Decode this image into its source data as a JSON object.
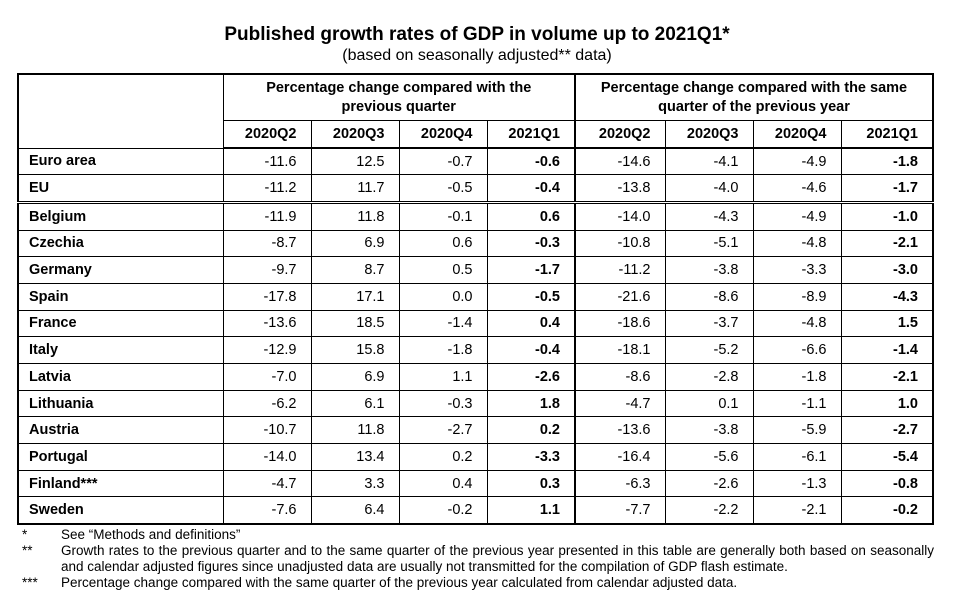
{
  "title": "Published growth rates of GDP in volume up to 2021Q1*",
  "subtitle": "(based on seasonally adjusted** data)",
  "table": {
    "group_headers": [
      "Percentage change compared with the previous quarter",
      "Percentage change compared with the same quarter of the previous year"
    ],
    "quarters": [
      "2020Q2",
      "2020Q3",
      "2020Q4",
      "2021Q1",
      "2020Q2",
      "2020Q3",
      "2020Q4",
      "2021Q1"
    ],
    "rows": [
      {
        "label": "Euro area",
        "values": [
          "-11.6",
          "12.5",
          "-0.7",
          "-0.6",
          "-14.6",
          "-4.1",
          "-4.9",
          "-1.8"
        ]
      },
      {
        "label": "EU",
        "values": [
          "-11.2",
          "11.7",
          "-0.5",
          "-0.4",
          "-13.8",
          "-4.0",
          "-4.6",
          "-1.7"
        ]
      },
      {
        "label": "Belgium",
        "values": [
          "-11.9",
          "11.8",
          "-0.1",
          "0.6",
          "-14.0",
          "-4.3",
          "-4.9",
          "-1.0"
        ]
      },
      {
        "label": "Czechia",
        "values": [
          "-8.7",
          "6.9",
          "0.6",
          "-0.3",
          "-10.8",
          "-5.1",
          "-4.8",
          "-2.1"
        ]
      },
      {
        "label": "Germany",
        "values": [
          "-9.7",
          "8.7",
          "0.5",
          "-1.7",
          "-11.2",
          "-3.8",
          "-3.3",
          "-3.0"
        ]
      },
      {
        "label": "Spain",
        "values": [
          "-17.8",
          "17.1",
          "0.0",
          "-0.5",
          "-21.6",
          "-8.6",
          "-8.9",
          "-4.3"
        ]
      },
      {
        "label": "France",
        "values": [
          "-13.6",
          "18.5",
          "-1.4",
          "0.4",
          "-18.6",
          "-3.7",
          "-4.8",
          "1.5"
        ]
      },
      {
        "label": "Italy",
        "values": [
          "-12.9",
          "15.8",
          "-1.8",
          "-0.4",
          "-18.1",
          "-5.2",
          "-6.6",
          "-1.4"
        ]
      },
      {
        "label": "Latvia",
        "values": [
          "-7.0",
          "6.9",
          "1.1",
          "-2.6",
          "-8.6",
          "-2.8",
          "-1.8",
          "-2.1"
        ]
      },
      {
        "label": "Lithuania",
        "values": [
          "-6.2",
          "6.1",
          "-0.3",
          "1.8",
          "-4.7",
          "0.1",
          "-1.1",
          "1.0"
        ]
      },
      {
        "label": "Austria",
        "values": [
          "-10.7",
          "11.8",
          "-2.7",
          "0.2",
          "-13.6",
          "-3.8",
          "-5.9",
          "-2.7"
        ]
      },
      {
        "label": "Portugal",
        "values": [
          "-14.0",
          "13.4",
          "0.2",
          "-3.3",
          "-16.4",
          "-5.6",
          "-6.1",
          "-5.4"
        ]
      },
      {
        "label": "Finland***",
        "values": [
          "-4.7",
          "3.3",
          "0.4",
          "0.3",
          "-6.3",
          "-2.6",
          "-1.3",
          "-0.8"
        ]
      },
      {
        "label": "Sweden",
        "values": [
          "-7.6",
          "6.4",
          "-0.2",
          "1.1",
          "-7.7",
          "-2.2",
          "-2.1",
          "-0.2"
        ]
      }
    ]
  },
  "footnotes": [
    {
      "marker": "*",
      "text": "See “Methods and definitions”"
    },
    {
      "marker": "**",
      "text": "Growth rates to the previous quarter and to the same quarter of the previous year presented in this table are generally both based on seasonally and calendar adjusted figures since unadjusted data are usually not transmitted for the compilation of GDP flash estimate."
    },
    {
      "marker": "***",
      "text": "Percentage change compared with the same quarter of the previous year calculated from calendar adjusted data."
    }
  ]
}
